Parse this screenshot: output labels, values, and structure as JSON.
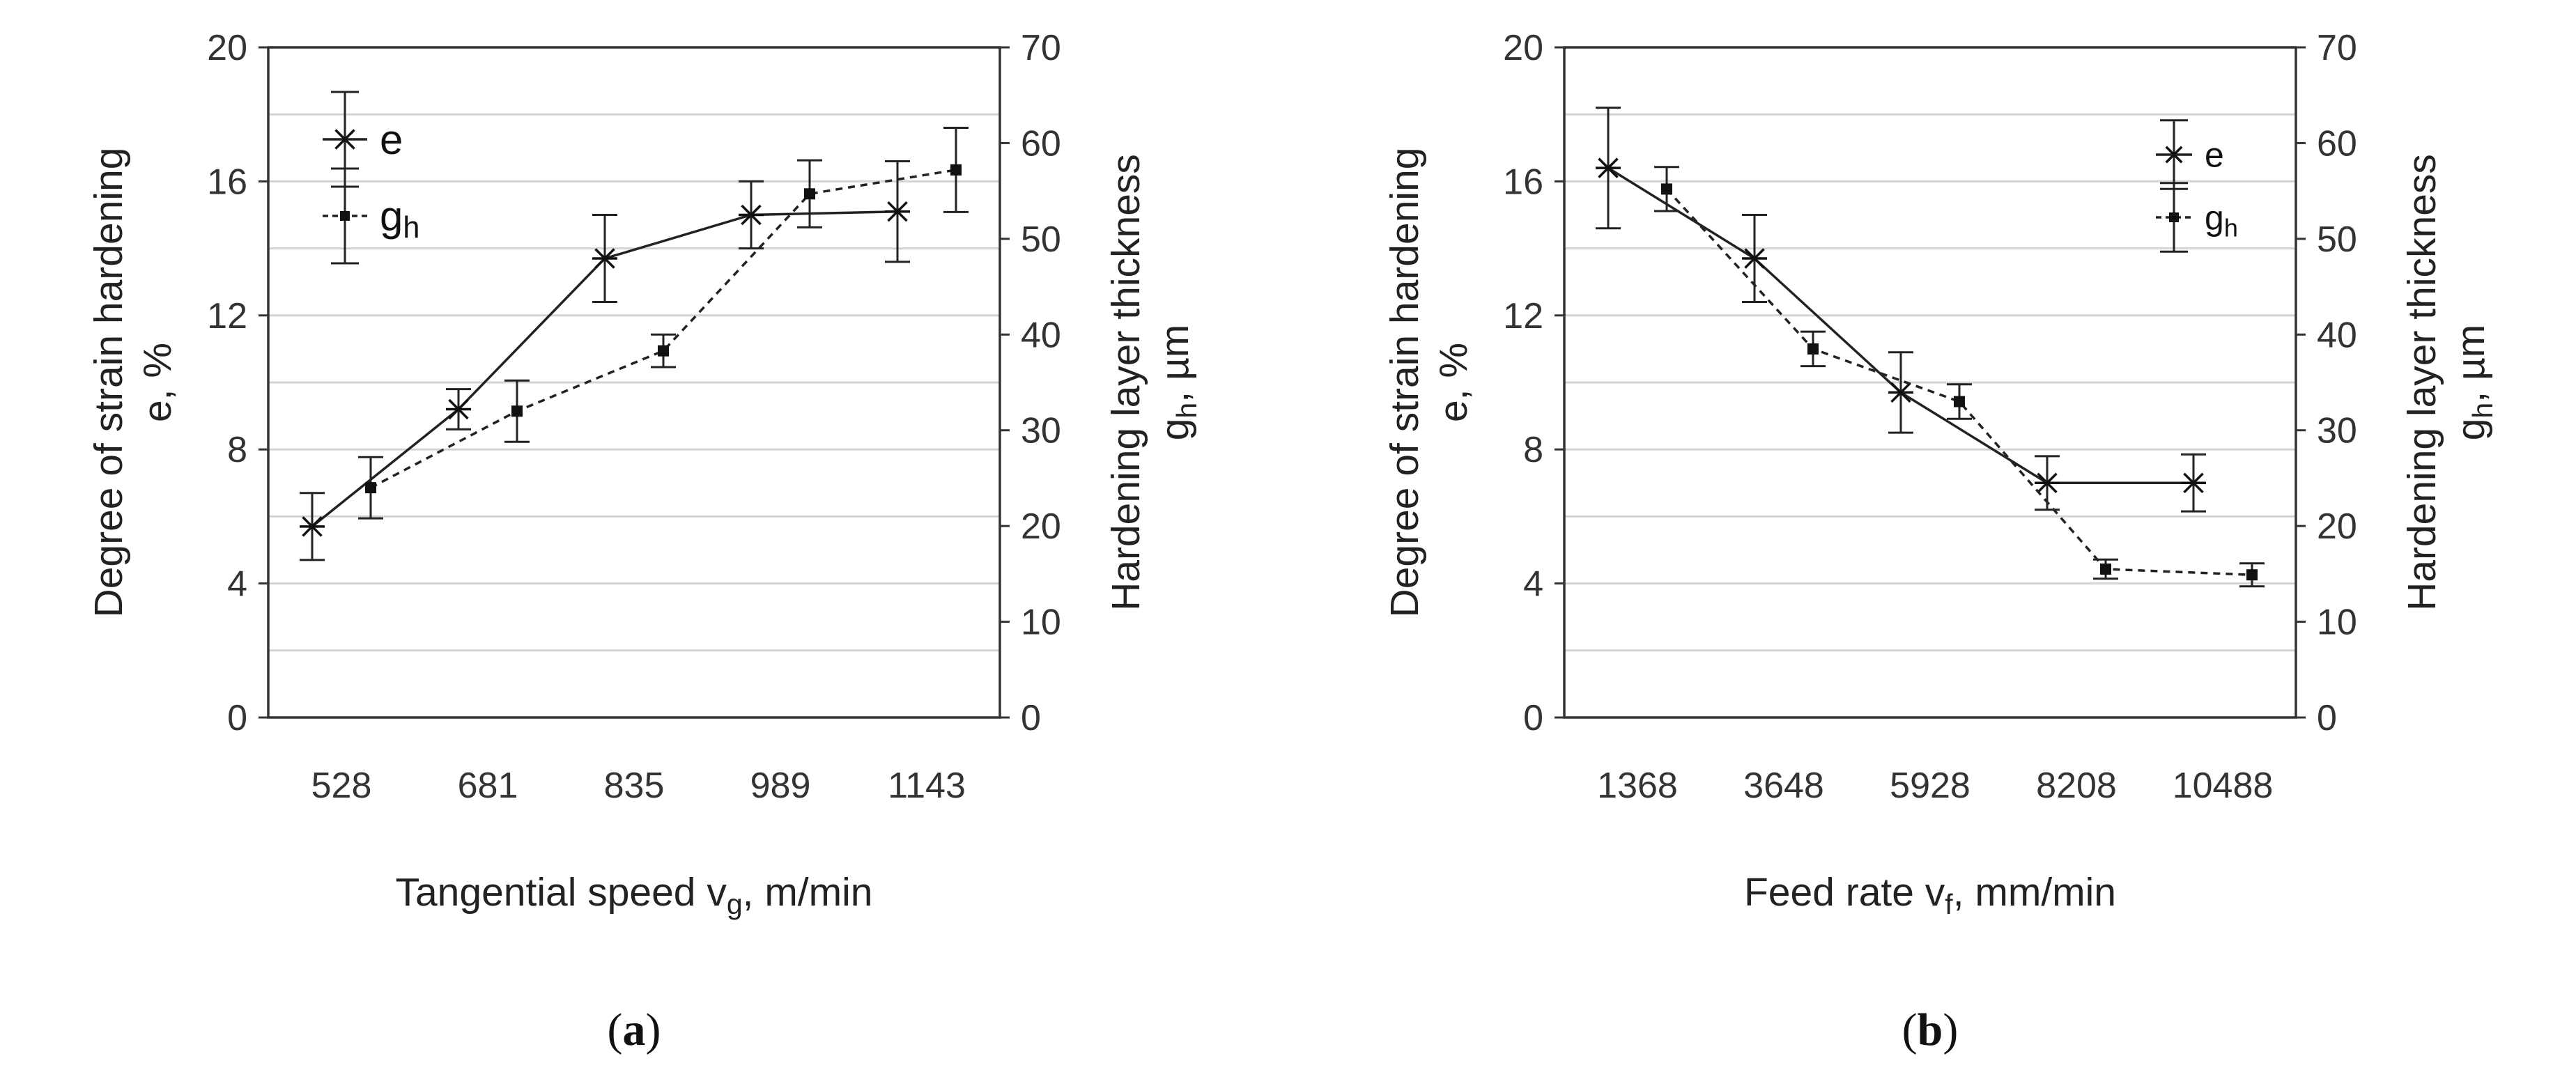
{
  "chart_data": [
    {
      "type": "line",
      "panel_label": "(a)",
      "panel_letter": "a",
      "xlabel": "Tangential speed v",
      "xlabel_sub": "g",
      "xlabel_unit": ", m/min",
      "ylabel_left_line1": "Degree of strain hardening",
      "ylabel_left_line2": "e, %",
      "ylabel_right_line1": "Hardening layer thickness",
      "ylabel_right_main": "g",
      "ylabel_right_sub": "h",
      "ylabel_right_unit": ", µm",
      "categories": [
        "528",
        "681",
        "835",
        "989",
        "1143"
      ],
      "ylim_left": [
        0,
        20
      ],
      "yticks_left": [
        0,
        4,
        8,
        12,
        16,
        20
      ],
      "ylim_right": [
        0,
        70
      ],
      "yticks_right": [
        0,
        10,
        20,
        30,
        40,
        50,
        60,
        70
      ],
      "legend_position": "top-left",
      "legend": [
        {
          "label": "e",
          "sub": ""
        },
        {
          "label": "g",
          "sub": "h"
        }
      ],
      "series": [
        {
          "name": "e",
          "axis": "left",
          "marker": "star",
          "line": "solid",
          "x_offset": -0.2,
          "values": [
            5.7,
            9.2,
            13.7,
            15.0,
            15.1
          ],
          "errors": [
            1.0,
            0.6,
            1.3,
            1.0,
            1.5
          ]
        },
        {
          "name": "gh",
          "axis": "right",
          "marker": "square",
          "line": "dashed",
          "x_offset": 0.2,
          "values": [
            24.0,
            32.0,
            38.3,
            54.7,
            57.2
          ],
          "errors": [
            3.2,
            3.2,
            1.7,
            3.5,
            4.4
          ]
        }
      ]
    },
    {
      "type": "line",
      "panel_label": "(b)",
      "panel_letter": "b",
      "xlabel": "Feed rate v",
      "xlabel_sub": "f",
      "xlabel_unit": ", mm/min",
      "ylabel_left_line1": "Degree of strain hardening",
      "ylabel_left_line2": "e, %",
      "ylabel_right_line1": "Hardening layer thickness",
      "ylabel_right_main": "g",
      "ylabel_right_sub": "h",
      "ylabel_right_unit": ", µm",
      "categories": [
        "1368",
        "3648",
        "5928",
        "8208",
        "10488"
      ],
      "ylim_left": [
        0,
        20
      ],
      "yticks_left": [
        0,
        4,
        8,
        12,
        16,
        20
      ],
      "ylim_right": [
        0,
        70
      ],
      "yticks_right": [
        0,
        10,
        20,
        30,
        40,
        50,
        60,
        70
      ],
      "legend_position": "top-right",
      "legend": [
        {
          "label": "e",
          "sub": ""
        },
        {
          "label": "g",
          "sub": "h"
        }
      ],
      "series": [
        {
          "name": "e",
          "axis": "left",
          "marker": "star",
          "line": "solid",
          "x_offset": -0.2,
          "values": [
            16.4,
            13.7,
            9.7,
            7.0,
            7.0
          ],
          "errors": [
            1.8,
            1.3,
            1.2,
            0.8,
            0.85
          ]
        },
        {
          "name": "gh",
          "axis": "right",
          "marker": "square",
          "line": "dashed",
          "x_offset": 0.2,
          "values": [
            55.2,
            38.5,
            33.0,
            15.5,
            14.9
          ],
          "errors": [
            2.3,
            1.8,
            1.8,
            1.0,
            1.2
          ]
        }
      ]
    }
  ]
}
